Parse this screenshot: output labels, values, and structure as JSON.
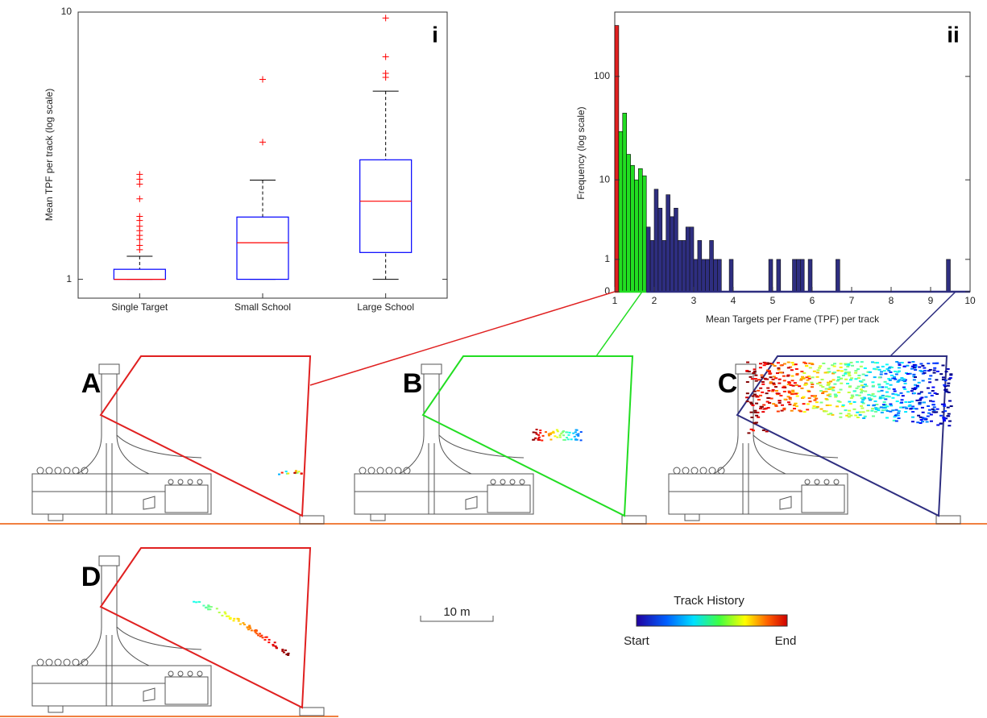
{
  "chart_data": [
    {
      "type": "box",
      "ylabel": "Mean TPF per track (log scale)",
      "annotation": "i",
      "categories": [
        "Single Target",
        "Small School",
        "Large School"
      ],
      "boxes": [
        {
          "whislo": 1,
          "q1": 1,
          "med": 1,
          "q3": 1.09,
          "whishi": 1.22,
          "fliers": [
            1.29,
            1.34,
            1.41,
            1.46,
            1.52,
            1.58,
            1.66,
            1.72,
            2.0,
            2.27,
            2.37,
            2.47
          ]
        },
        {
          "whislo": 1,
          "q1": 1,
          "med": 1.37,
          "q3": 1.71,
          "whishi": 2.35,
          "fliers": [
            3.26,
            5.6
          ]
        },
        {
          "whislo": 1,
          "q1": 1.26,
          "med": 1.96,
          "q3": 2.8,
          "whishi": 5.06,
          "fliers": [
            5.7,
            5.9,
            6.8,
            9.5
          ]
        }
      ],
      "ylim": [
        0.85,
        10
      ],
      "yticks": [
        1,
        10
      ],
      "yscale": "log",
      "box_color": "#0000ff",
      "median_color": "#ff0000",
      "flier_color": "#ff0000"
    },
    {
      "type": "histogram",
      "ylabel": "Frequency (log scale)",
      "xlabel": "Mean Targets per Frame (TPF) per track",
      "annotation": "ii",
      "series": [
        {
          "color": "#e02020",
          "bins": [
            1,
            1.1
          ],
          "values": [
            300
          ]
        },
        {
          "color": "#22dd22",
          "bins": [
            1.1,
            1.2,
            1.3,
            1.4,
            1.5,
            1.6,
            1.7,
            1.8
          ],
          "values": [
            30,
            45,
            18,
            14,
            10,
            13,
            11
          ]
        },
        {
          "color": "#2e2e80",
          "bins": [
            1.8,
            1.9,
            2,
            2.1,
            2.2,
            2.3,
            2.4,
            2.5,
            2.6,
            2.7,
            2.8,
            2.9,
            3,
            3.1,
            3.2,
            3.3,
            3.4,
            3.5,
            3.6,
            3.7,
            3.8,
            3.9,
            4,
            4.1,
            4.2,
            4.3,
            4.4,
            4.5,
            4.6,
            4.7,
            4.8,
            4.9,
            5,
            5.1,
            5.2,
            5.3,
            5.4,
            5.5,
            5.6,
            5.7,
            5.8,
            5.9,
            6,
            6.1,
            6.2,
            6.3,
            6.4,
            6.5,
            6.6,
            6.7,
            6.8,
            6.9,
            7,
            7.1,
            7.2,
            7.3,
            7.4,
            7.5,
            7.6,
            7.7,
            7.8,
            7.9,
            8,
            8.1,
            8.2,
            8.3,
            8.4,
            8.5,
            8.6,
            8.7,
            8.8,
            8.9,
            9,
            9.1,
            9.2,
            9.3,
            9.4,
            9.5,
            9.6,
            9.7,
            9.8,
            9.9,
            10
          ],
          "values": [
            3,
            2,
            8,
            5,
            2,
            7,
            4,
            5,
            2,
            2,
            3,
            3,
            1,
            2,
            1,
            1,
            2,
            1,
            1,
            0,
            0,
            1,
            0,
            0,
            0,
            0,
            0,
            0,
            0,
            0,
            0,
            1,
            0,
            1,
            0,
            0,
            0,
            1,
            1,
            1,
            0,
            1,
            0,
            0,
            0,
            0,
            0,
            0,
            1,
            0,
            0,
            0,
            0,
            0,
            0,
            0,
            0,
            0,
            0,
            0,
            0,
            0,
            0,
            0,
            0,
            0,
            0,
            0,
            0,
            0,
            0,
            0,
            0,
            0,
            0,
            0,
            1,
            0,
            0,
            0,
            0,
            0
          ]
        }
      ],
      "xlim": [
        1,
        10
      ],
      "xticks": [
        1,
        2,
        3,
        4,
        5,
        6,
        7,
        8,
        9,
        10
      ],
      "ylim": [
        0,
        400
      ],
      "yticks": [
        0,
        1,
        10,
        100
      ],
      "yscale": "log1p"
    }
  ],
  "panels": {
    "labels": [
      "A",
      "B",
      "C",
      "D"
    ]
  },
  "scale_bar": {
    "label": "10 m"
  },
  "colorbar": {
    "title": "Track History",
    "start": "Start",
    "end": "End"
  }
}
